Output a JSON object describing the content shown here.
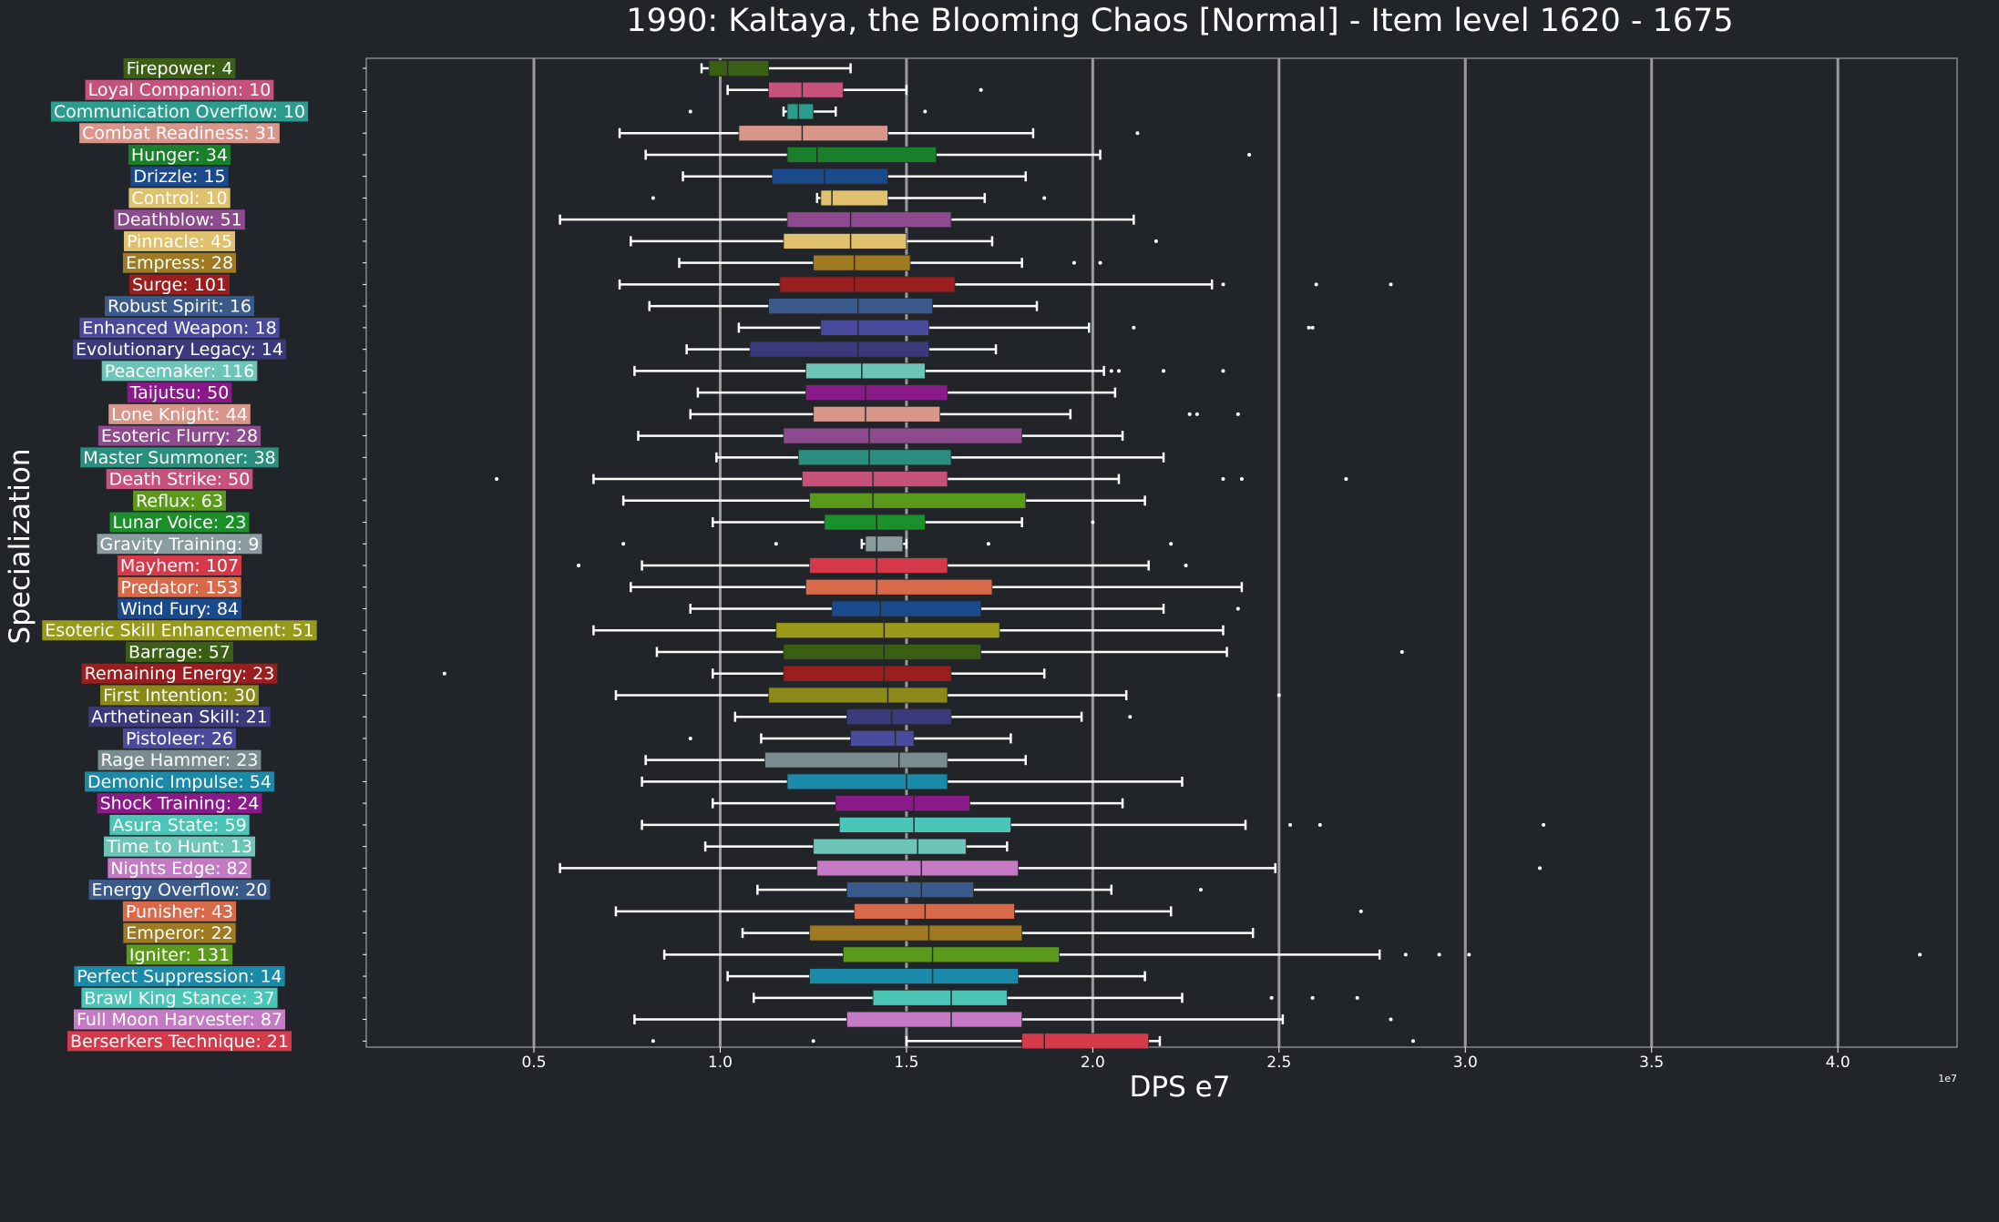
{
  "chart_data": {
    "type": "boxplot",
    "title": "1990: Kaltaya, the Blooming Chaos [Normal] - Item level 1620 - 1675",
    "xlabel": "DPS e7",
    "ylabel": "Specialization",
    "offset_text": "1e7",
    "xlim": [
      0.05,
      4.32
    ],
    "xticks": [
      0.5,
      1.0,
      1.5,
      2.0,
      2.5,
      3.0,
      3.5,
      4.0
    ],
    "xtick_labels": [
      "0.5",
      "1.0",
      "1.5",
      "2.0",
      "2.5",
      "3.0",
      "3.5",
      "4.0"
    ],
    "grid": "vertical",
    "series": [
      {
        "label": "Firepower: 4",
        "color": "#3a5f14",
        "whisker_low": 0.95,
        "q1": 0.97,
        "median": 1.02,
        "q3": 1.13,
        "whisker_high": 1.35,
        "outliers": []
      },
      {
        "label": "Loyal Companion: 10",
        "color": "#c6517a",
        "whisker_low": 1.02,
        "q1": 1.13,
        "median": 1.22,
        "q3": 1.33,
        "whisker_high": 1.5,
        "outliers": [
          1.7
        ]
      },
      {
        "label": "Communication Overflow: 10",
        "color": "#2a9d8f",
        "whisker_low": 1.17,
        "q1": 1.18,
        "median": 1.21,
        "q3": 1.25,
        "whisker_high": 1.31,
        "outliers": [
          0.92,
          1.55
        ]
      },
      {
        "label": "Combat Readiness: 31",
        "color": "#d9968a",
        "whisker_low": 0.73,
        "q1": 1.05,
        "median": 1.22,
        "q3": 1.45,
        "whisker_high": 1.84,
        "outliers": [
          2.12
        ]
      },
      {
        "label": "Hunger: 34",
        "color": "#1a7f2a",
        "whisker_low": 0.8,
        "q1": 1.18,
        "median": 1.26,
        "q3": 1.58,
        "whisker_high": 2.02,
        "outliers": [
          2.42
        ]
      },
      {
        "label": "Drizzle: 15",
        "color": "#1a4a8c",
        "whisker_low": 0.9,
        "q1": 1.14,
        "median": 1.28,
        "q3": 1.45,
        "whisker_high": 1.82,
        "outliers": []
      },
      {
        "label": "Control: 10",
        "color": "#e0c26e",
        "whisker_low": 1.26,
        "q1": 1.27,
        "median": 1.3,
        "q3": 1.45,
        "whisker_high": 1.71,
        "outliers": [
          0.82,
          1.87
        ]
      },
      {
        "label": "Deathblow: 51",
        "color": "#8e4a8e",
        "whisker_low": 0.57,
        "q1": 1.18,
        "median": 1.35,
        "q3": 1.62,
        "whisker_high": 2.11,
        "outliers": []
      },
      {
        "label": "Pinnacle: 45",
        "color": "#e0c26e",
        "whisker_low": 0.76,
        "q1": 1.17,
        "median": 1.35,
        "q3": 1.5,
        "whisker_high": 1.73,
        "outliers": [
          2.17
        ]
      },
      {
        "label": "Empress: 28",
        "color": "#a07a20",
        "whisker_low": 0.89,
        "q1": 1.25,
        "median": 1.36,
        "q3": 1.51,
        "whisker_high": 1.81,
        "outliers": [
          1.95,
          2.02
        ]
      },
      {
        "label": "Surge: 101",
        "color": "#9a1e1e",
        "whisker_low": 0.73,
        "q1": 1.16,
        "median": 1.36,
        "q3": 1.63,
        "whisker_high": 2.32,
        "outliers": [
          2.35,
          2.6,
          2.8
        ]
      },
      {
        "label": "Robust Spirit: 16",
        "color": "#3a5a8c",
        "whisker_low": 0.81,
        "q1": 1.13,
        "median": 1.37,
        "q3": 1.57,
        "whisker_high": 1.85,
        "outliers": []
      },
      {
        "label": "Enhanced Weapon: 18",
        "color": "#4a4a9c",
        "whisker_low": 1.05,
        "q1": 1.27,
        "median": 1.37,
        "q3": 1.56,
        "whisker_high": 1.99,
        "outliers": [
          2.11,
          2.58,
          2.59
        ]
      },
      {
        "label": "Evolutionary Legacy: 14",
        "color": "#3a3a7a",
        "whisker_low": 0.91,
        "q1": 1.08,
        "median": 1.37,
        "q3": 1.56,
        "whisker_high": 1.74,
        "outliers": []
      },
      {
        "label": "Peacemaker: 116",
        "color": "#6cc5b8",
        "whisker_low": 0.77,
        "q1": 1.23,
        "median": 1.38,
        "q3": 1.55,
        "whisker_high": 2.03,
        "outliers": [
          2.05,
          2.07,
          2.19,
          2.35
        ]
      },
      {
        "label": "Taijutsu: 50",
        "color": "#8a1a8a",
        "whisker_low": 0.94,
        "q1": 1.23,
        "median": 1.39,
        "q3": 1.61,
        "whisker_high": 2.06,
        "outliers": []
      },
      {
        "label": "Lone Knight: 44",
        "color": "#d9968a",
        "whisker_low": 0.92,
        "q1": 1.25,
        "median": 1.39,
        "q3": 1.59,
        "whisker_high": 1.94,
        "outliers": [
          2.26,
          2.28,
          2.39
        ]
      },
      {
        "label": "Esoteric Flurry: 28",
        "color": "#8e4a8e",
        "whisker_low": 0.78,
        "q1": 1.17,
        "median": 1.4,
        "q3": 1.81,
        "whisker_high": 2.08,
        "outliers": []
      },
      {
        "label": "Master Summoner: 38",
        "color": "#2a8f7f",
        "whisker_low": 0.99,
        "q1": 1.21,
        "median": 1.4,
        "q3": 1.62,
        "whisker_high": 2.19,
        "outliers": []
      },
      {
        "label": "Death Strike: 50",
        "color": "#c6517a",
        "whisker_low": 0.66,
        "q1": 1.22,
        "median": 1.41,
        "q3": 1.61,
        "whisker_high": 2.07,
        "outliers": [
          0.4,
          2.35,
          2.4,
          2.68
        ]
      },
      {
        "label": "Reflux: 63",
        "color": "#5a9a1a",
        "whisker_low": 0.74,
        "q1": 1.24,
        "median": 1.41,
        "q3": 1.82,
        "whisker_high": 2.14,
        "outliers": []
      },
      {
        "label": "Lunar Voice: 23",
        "color": "#1a8f2a",
        "whisker_low": 0.98,
        "q1": 1.28,
        "median": 1.42,
        "q3": 1.55,
        "whisker_high": 1.81,
        "outliers": [
          2.0
        ]
      },
      {
        "label": "Gravity Training: 9",
        "color": "#8a9ca0",
        "whisker_low": 1.38,
        "q1": 1.39,
        "median": 1.42,
        "q3": 1.49,
        "whisker_high": 1.5,
        "outliers": [
          0.74,
          1.15,
          1.72,
          2.21
        ]
      },
      {
        "label": "Mayhem: 107",
        "color": "#d43a4a",
        "whisker_low": 0.79,
        "q1": 1.24,
        "median": 1.42,
        "q3": 1.61,
        "whisker_high": 2.15,
        "outliers": [
          0.62,
          2.25
        ]
      },
      {
        "label": "Predator: 153",
        "color": "#d86a4a",
        "whisker_low": 0.76,
        "q1": 1.23,
        "median": 1.42,
        "q3": 1.73,
        "whisker_high": 2.4,
        "outliers": []
      },
      {
        "label": "Wind Fury: 84",
        "color": "#1a4a8c",
        "whisker_low": 0.92,
        "q1": 1.3,
        "median": 1.43,
        "q3": 1.7,
        "whisker_high": 2.19,
        "outliers": [
          2.39
        ]
      },
      {
        "label": "Esoteric Skill Enhancement: 51",
        "color": "#9a9a1a",
        "whisker_low": 0.66,
        "q1": 1.15,
        "median": 1.44,
        "q3": 1.75,
        "whisker_high": 2.35,
        "outliers": []
      },
      {
        "label": "Barrage: 57",
        "color": "#3a5f14",
        "whisker_low": 0.83,
        "q1": 1.17,
        "median": 1.44,
        "q3": 1.7,
        "whisker_high": 2.36,
        "outliers": [
          2.83
        ]
      },
      {
        "label": "Remaining Energy: 23",
        "color": "#9a1e1e",
        "whisker_low": 0.98,
        "q1": 1.17,
        "median": 1.44,
        "q3": 1.62,
        "whisker_high": 1.87,
        "outliers": [
          0.26
        ]
      },
      {
        "label": "First Intention: 30",
        "color": "#8a8a1a",
        "whisker_low": 0.72,
        "q1": 1.13,
        "median": 1.45,
        "q3": 1.61,
        "whisker_high": 2.09,
        "outliers": [
          2.5
        ]
      },
      {
        "label": "Arthetinean Skill: 21",
        "color": "#3a3a7a",
        "whisker_low": 1.04,
        "q1": 1.34,
        "median": 1.46,
        "q3": 1.62,
        "whisker_high": 1.97,
        "outliers": [
          2.1
        ]
      },
      {
        "label": "Pistoleer: 26",
        "color": "#4a4a9c",
        "whisker_low": 1.11,
        "q1": 1.35,
        "median": 1.47,
        "q3": 1.52,
        "whisker_high": 1.78,
        "outliers": [
          0.92
        ]
      },
      {
        "label": "Rage Hammer: 23",
        "color": "#7a8c90",
        "whisker_low": 0.8,
        "q1": 1.12,
        "median": 1.48,
        "q3": 1.61,
        "whisker_high": 1.82,
        "outliers": []
      },
      {
        "label": "Demonic Impulse: 54",
        "color": "#1a8aa8",
        "whisker_low": 0.79,
        "q1": 1.18,
        "median": 1.5,
        "q3": 1.61,
        "whisker_high": 2.24,
        "outliers": []
      },
      {
        "label": "Shock Training: 24",
        "color": "#8a1a8a",
        "whisker_low": 0.98,
        "q1": 1.31,
        "median": 1.52,
        "q3": 1.67,
        "whisker_high": 2.08,
        "outliers": []
      },
      {
        "label": "Asura State: 59",
        "color": "#4ac5b8",
        "whisker_low": 0.79,
        "q1": 1.32,
        "median": 1.52,
        "q3": 1.78,
        "whisker_high": 2.41,
        "outliers": [
          2.53,
          2.61,
          3.21
        ]
      },
      {
        "label": "Time to Hunt: 13",
        "color": "#6cc5b8",
        "whisker_low": 0.96,
        "q1": 1.25,
        "median": 1.53,
        "q3": 1.66,
        "whisker_high": 1.77,
        "outliers": []
      },
      {
        "label": "Nights Edge: 82",
        "color": "#c47ac4",
        "whisker_low": 0.57,
        "q1": 1.26,
        "median": 1.54,
        "q3": 1.8,
        "whisker_high": 2.49,
        "outliers": [
          3.2
        ]
      },
      {
        "label": "Energy Overflow: 20",
        "color": "#3a5a8c",
        "whisker_low": 1.1,
        "q1": 1.34,
        "median": 1.54,
        "q3": 1.68,
        "whisker_high": 2.05,
        "outliers": [
          2.29
        ]
      },
      {
        "label": "Punisher: 43",
        "color": "#d86a4a",
        "whisker_low": 0.72,
        "q1": 1.36,
        "median": 1.55,
        "q3": 1.79,
        "whisker_high": 2.21,
        "outliers": [
          2.72
        ]
      },
      {
        "label": "Emperor: 22",
        "color": "#a07a20",
        "whisker_low": 1.06,
        "q1": 1.24,
        "median": 1.56,
        "q3": 1.81,
        "whisker_high": 2.43,
        "outliers": []
      },
      {
        "label": "Igniter: 131",
        "color": "#5a9a1a",
        "whisker_low": 0.85,
        "q1": 1.33,
        "median": 1.57,
        "q3": 1.91,
        "whisker_high": 2.77,
        "outliers": [
          2.84,
          2.93,
          3.01,
          4.22
        ]
      },
      {
        "label": "Perfect Suppression: 14",
        "color": "#1a8aa8",
        "whisker_low": 1.02,
        "q1": 1.24,
        "median": 1.57,
        "q3": 1.8,
        "whisker_high": 2.14,
        "outliers": []
      },
      {
        "label": "Brawl King Stance: 37",
        "color": "#4ac5b8",
        "whisker_low": 1.09,
        "q1": 1.41,
        "median": 1.62,
        "q3": 1.77,
        "whisker_high": 2.24,
        "outliers": [
          2.48,
          2.59,
          2.71
        ]
      },
      {
        "label": "Full Moon Harvester: 87",
        "color": "#c47ac4",
        "whisker_low": 0.77,
        "q1": 1.34,
        "median": 1.62,
        "q3": 1.81,
        "whisker_high": 2.51,
        "outliers": [
          2.8
        ]
      },
      {
        "label": "Berserkers Technique: 21",
        "color": "#d43a4a",
        "whisker_low": 1.5,
        "q1": 1.81,
        "median": 1.87,
        "q3": 2.15,
        "whisker_high": 2.18,
        "outliers": [
          0.82,
          1.25,
          2.86
        ]
      }
    ]
  }
}
